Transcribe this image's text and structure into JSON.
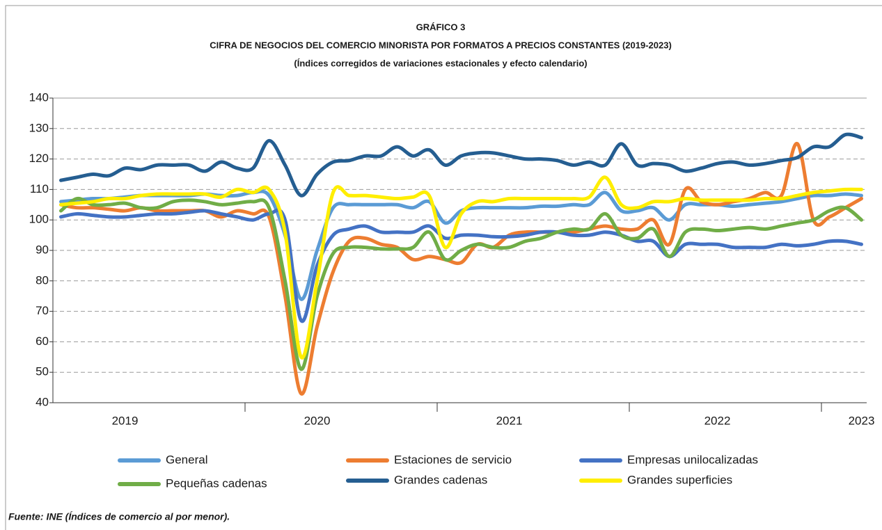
{
  "chart_data": {
    "type": "line",
    "title": "GRÁFICO 3",
    "subtitle": "CIFRA DE NEGOCIOS DEL COMERCIO MINORISTA POR FORMATOS A PRECIOS CONSTANTES (2019-2023)",
    "note": "(Índices corregidos de variaciones estacionales y efecto calendario)",
    "source": "Fuente: INE (Índices de comercio al por menor).",
    "categories": [
      null,
      null,
      null,
      null,
      "2019",
      null,
      null,
      null,
      null,
      null,
      null,
      null,
      null,
      null,
      null,
      null,
      "2020",
      null,
      null,
      null,
      null,
      null,
      null,
      null,
      null,
      null,
      null,
      null,
      "2021",
      null,
      null,
      null,
      null,
      null,
      null,
      null,
      null,
      null,
      null,
      null,
      null,
      "2022",
      null,
      null,
      null,
      null,
      null,
      null,
      null,
      null,
      "2023"
    ],
    "ylim": [
      40,
      140
    ],
    "yticks": [
      40,
      50,
      60,
      70,
      80,
      90,
      100,
      110,
      120,
      130,
      140
    ],
    "grid": true,
    "series": [
      {
        "name": "General",
        "color": "#5b9bd5",
        "values": [
          106,
          106.5,
          107,
          107,
          107.5,
          108,
          108,
          108,
          108,
          108.5,
          108,
          108,
          109,
          108,
          95,
          74,
          90,
          104,
          105,
          105,
          105,
          105,
          104,
          106,
          99,
          103,
          104,
          104,
          104,
          104,
          104.5,
          104.5,
          105,
          105,
          109,
          103,
          103,
          104,
          100,
          105,
          105,
          105,
          104.5,
          105,
          105.5,
          106,
          107,
          108,
          108,
          108.5,
          108
        ]
      },
      {
        "name": "Estaciones de servicio",
        "color": "#ed7d31",
        "values": [
          105,
          104,
          104,
          103.5,
          103,
          104,
          103,
          103,
          103,
          103,
          101,
          103,
          102,
          101,
          75,
          43,
          65,
          83,
          93,
          94,
          92,
          91,
          87,
          88,
          87,
          86,
          92,
          91,
          95,
          96,
          96,
          96,
          96,
          97,
          98,
          97,
          97,
          100,
          92,
          110,
          106,
          105,
          106,
          107,
          109,
          108,
          125,
          100,
          101,
          104,
          107
        ]
      },
      {
        "name": "Empresas unilocalizadas",
        "color": "#4472c4",
        "values": [
          101,
          102,
          101.5,
          101,
          101,
          101.5,
          102,
          102,
          102.5,
          103,
          102,
          101,
          100,
          102,
          100,
          67,
          85,
          95,
          97,
          98,
          96,
          96,
          96,
          98,
          94,
          95,
          95,
          94.5,
          94.5,
          95,
          96,
          96,
          95,
          95,
          96,
          95,
          93,
          93,
          88,
          92,
          92,
          92,
          91,
          91,
          91,
          92,
          91.5,
          92,
          93,
          93,
          92
        ]
      },
      {
        "name": "Pequeñas cadenas",
        "color": "#70ad47",
        "values": [
          103,
          107,
          105,
          105,
          105.5,
          104,
          104,
          106,
          106.5,
          106,
          105,
          105.5,
          106,
          104,
          80,
          51,
          75,
          89,
          91,
          91,
          90.5,
          90.5,
          91,
          96,
          87,
          90,
          92,
          91,
          91,
          93,
          94,
          96,
          97,
          97,
          102,
          95,
          94,
          97,
          88,
          96,
          97,
          96.5,
          97,
          97.5,
          97,
          98,
          99,
          100,
          103,
          104,
          100
        ]
      },
      {
        "name": "Grandes cadenas",
        "color": "#255e91",
        "values": [
          113,
          114,
          115,
          114.5,
          117,
          116.5,
          118,
          118,
          118,
          116,
          119,
          117,
          117,
          126,
          118,
          108,
          115,
          119,
          119.5,
          121,
          121,
          124,
          121,
          123,
          118,
          121,
          122,
          122,
          121,
          120,
          120,
          119.5,
          118,
          119,
          118,
          125,
          118,
          118.5,
          118,
          116,
          117,
          118.5,
          119,
          118,
          118.5,
          119.5,
          120.5,
          124,
          124,
          128,
          127
        ]
      },
      {
        "name": "Grandes superficies",
        "color": "#ffee00",
        "values": [
          105,
          105.5,
          106,
          107,
          107,
          108,
          108.5,
          108.5,
          108.5,
          108.5,
          107.5,
          110,
          109,
          110,
          96,
          55,
          80,
          109,
          108,
          108,
          107.5,
          107,
          107.5,
          108,
          91,
          102,
          106,
          106,
          107,
          107,
          107,
          107,
          107,
          107.5,
          114,
          105,
          104,
          106,
          106,
          107,
          106.5,
          106.5,
          106.5,
          106.5,
          107,
          107,
          108,
          109,
          109.5,
          110,
          110
        ]
      }
    ]
  }
}
